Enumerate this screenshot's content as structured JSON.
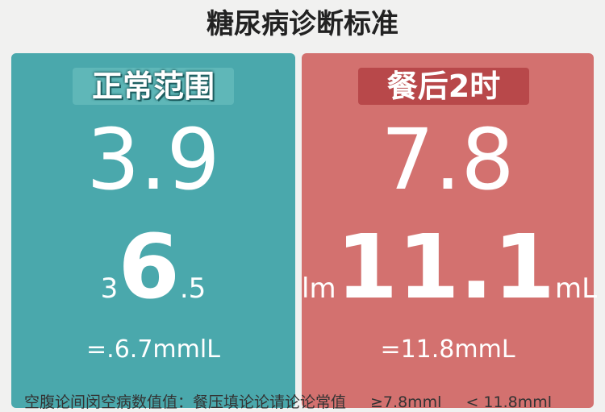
{
  "header": {
    "title": "糖尿病诊断标准"
  },
  "panels": [
    {
      "label": "正常范围",
      "value": "3.9",
      "sub_left": "3",
      "sub_main": "6",
      "sub_right": ".5",
      "footer": "=.6.7mmlL"
    },
    {
      "label": "餐后2时",
      "value": "7.8",
      "sub_left": "lm",
      "sub_main": "11.1",
      "sub_right": "mL",
      "footer": "=11.8mmL"
    }
  ],
  "bottom": {
    "text": "空腹论间闵空病数值值：餐压填论论请论论常值",
    "range_low": "≥7.8mml",
    "range_high": "< 11.8mml"
  }
}
